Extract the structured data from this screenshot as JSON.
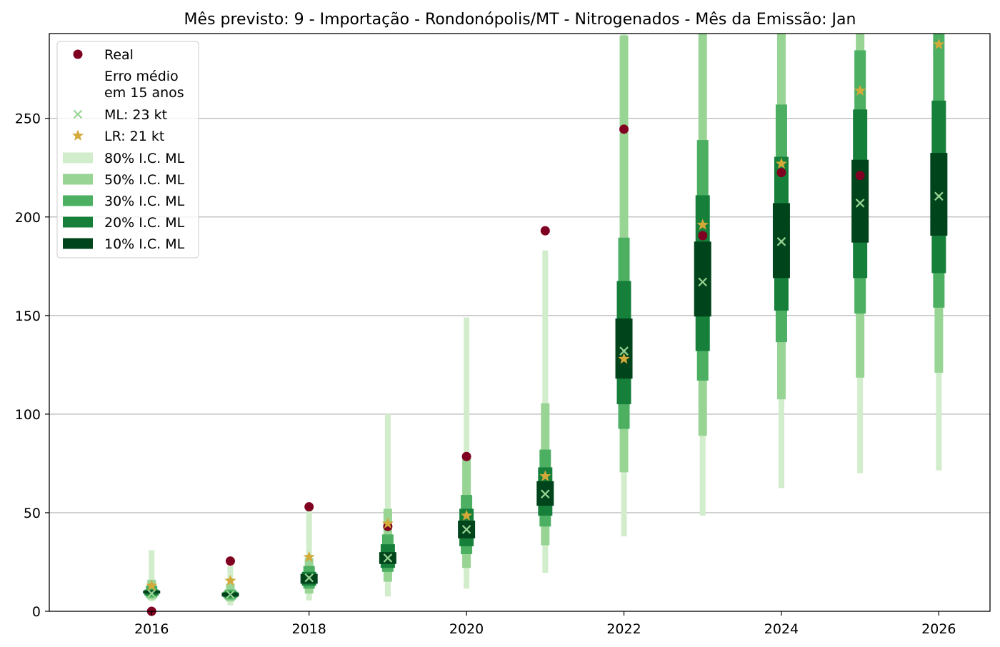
{
  "chart_data": {
    "type": "scatter",
    "title": "Mês previsto: 9 - Importação - Rondonópolis/MT - Nitrogenados - Mês da Emissão: Jan",
    "xlabel": "",
    "ylabel": "",
    "xlim": [
      2014.7,
      2026.65
    ],
    "ylim": [
      0,
      293
    ],
    "x_ticks": [
      2016,
      2018,
      2020,
      2022,
      2024,
      2026
    ],
    "x_tick_labels": [
      "2016",
      "2018",
      "2020",
      "2022",
      "2024",
      "2026"
    ],
    "y_ticks": [
      0,
      50,
      100,
      150,
      200,
      250
    ],
    "y_tick_labels": [
      "0",
      "50",
      "100",
      "150",
      "200",
      "250"
    ],
    "grid": "horizontal",
    "legend_position": "top-left",
    "colors": {
      "real": "#7f0020",
      "ml": "#98d493",
      "lr": "#d3a93a",
      "ci80": "#d1edcb",
      "ci50": "#98d494",
      "ci30": "#4caf62",
      "ci20": "#16803a",
      "ci10": "#00441b",
      "grid": "#b0b0b0"
    },
    "legend": [
      {
        "key": "real",
        "label": "Real",
        "marker": "circle"
      },
      {
        "key": "note",
        "label": "Erro médio\nem 15 anos",
        "marker": "none"
      },
      {
        "key": "ml",
        "label": "ML: 23 kt",
        "marker": "x"
      },
      {
        "key": "lr",
        "label": "LR: 21 kt",
        "marker": "star"
      },
      {
        "key": "ci80",
        "label": "80% I.C. ML",
        "marker": "bar"
      },
      {
        "key": "ci50",
        "label": "50% I.C. ML",
        "marker": "bar"
      },
      {
        "key": "ci30",
        "label": "30% I.C. ML",
        "marker": "bar"
      },
      {
        "key": "ci20",
        "label": "20% I.C. ML",
        "marker": "bar"
      },
      {
        "key": "ci10",
        "label": "10% I.C. ML",
        "marker": "bar"
      }
    ],
    "x": [
      2016,
      2017,
      2018,
      2019,
      2020,
      2021,
      2022,
      2023,
      2024,
      2025,
      2026
    ],
    "series": [
      {
        "key": "real",
        "name": "Real",
        "values": [
          0,
          25.5,
          53,
          43,
          78.5,
          193,
          244.5,
          190.5,
          222.5,
          221,
          null
        ]
      },
      {
        "key": "ml",
        "name": "ML: 23 kt",
        "values": [
          9,
          8.5,
          17,
          27,
          41.5,
          59.5,
          132,
          167,
          187.5,
          207,
          210.5
        ]
      },
      {
        "key": "lr",
        "name": "LR: 21 kt",
        "values": [
          13,
          15.5,
          27.5,
          44.5,
          48.5,
          68.5,
          128,
          196,
          227,
          264,
          287.5
        ]
      }
    ],
    "intervals": [
      {
        "x": 2016,
        "ci80": [
          5,
          31
        ],
        "ci50": [
          6,
          16
        ],
        "ci30": [
          7,
          13
        ],
        "ci20": [
          8,
          11
        ],
        "ci10": [
          9,
          10.5
        ]
      },
      {
        "x": 2017,
        "ci80": [
          3,
          23
        ],
        "ci50": [
          5,
          14
        ],
        "ci30": [
          6,
          11
        ],
        "ci20": [
          7,
          10
        ],
        "ci10": [
          7.5,
          9.5
        ]
      },
      {
        "x": 2018,
        "ci80": [
          5.5,
          51
        ],
        "ci50": [
          9,
          27
        ],
        "ci30": [
          11.5,
          23
        ],
        "ci20": [
          13,
          20
        ],
        "ci10": [
          14,
          19
        ]
      },
      {
        "x": 2019,
        "ci80": [
          7.5,
          100
        ],
        "ci50": [
          15,
          52
        ],
        "ci30": [
          20,
          39
        ],
        "ci20": [
          22,
          34
        ],
        "ci10": [
          24,
          30
        ]
      },
      {
        "x": 2020,
        "ci80": [
          11.5,
          149
        ],
        "ci50": [
          22,
          79
        ],
        "ci30": [
          29,
          59
        ],
        "ci20": [
          33,
          52
        ],
        "ci10": [
          37,
          46
        ]
      },
      {
        "x": 2021,
        "ci80": [
          19.5,
          183
        ],
        "ci50": [
          33.5,
          105.5
        ],
        "ci30": [
          43,
          82
        ],
        "ci20": [
          48.5,
          73
        ],
        "ci10": [
          53.5,
          66
        ]
      },
      {
        "x": 2022,
        "ci80": [
          38,
          293
        ],
        "ci50": [
          70.5,
          292
        ],
        "ci30": [
          92.5,
          189.5
        ],
        "ci20": [
          105,
          167.5
        ],
        "ci10": [
          118,
          148.5
        ]
      },
      {
        "x": 2023,
        "ci80": [
          48.5,
          293
        ],
        "ci50": [
          89,
          293
        ],
        "ci30": [
          117,
          239
        ],
        "ci20": [
          132,
          211
        ],
        "ci10": [
          149.5,
          187.5
        ]
      },
      {
        "x": 2024,
        "ci80": [
          62.5,
          293
        ],
        "ci50": [
          107.5,
          293
        ],
        "ci30": [
          136.5,
          257
        ],
        "ci20": [
          152.5,
          230.5
        ],
        "ci10": [
          169,
          207
        ]
      },
      {
        "x": 2025,
        "ci80": [
          70,
          293
        ],
        "ci50": [
          118.5,
          293
        ],
        "ci30": [
          151,
          284.5
        ],
        "ci20": [
          169,
          254.5
        ],
        "ci10": [
          187,
          229
        ]
      },
      {
        "x": 2026,
        "ci80": [
          71.5,
          293
        ],
        "ci50": [
          121,
          293
        ],
        "ci30": [
          154,
          293
        ],
        "ci20": [
          171.5,
          259
        ],
        "ci10": [
          190.5,
          232.5
        ]
      }
    ]
  }
}
